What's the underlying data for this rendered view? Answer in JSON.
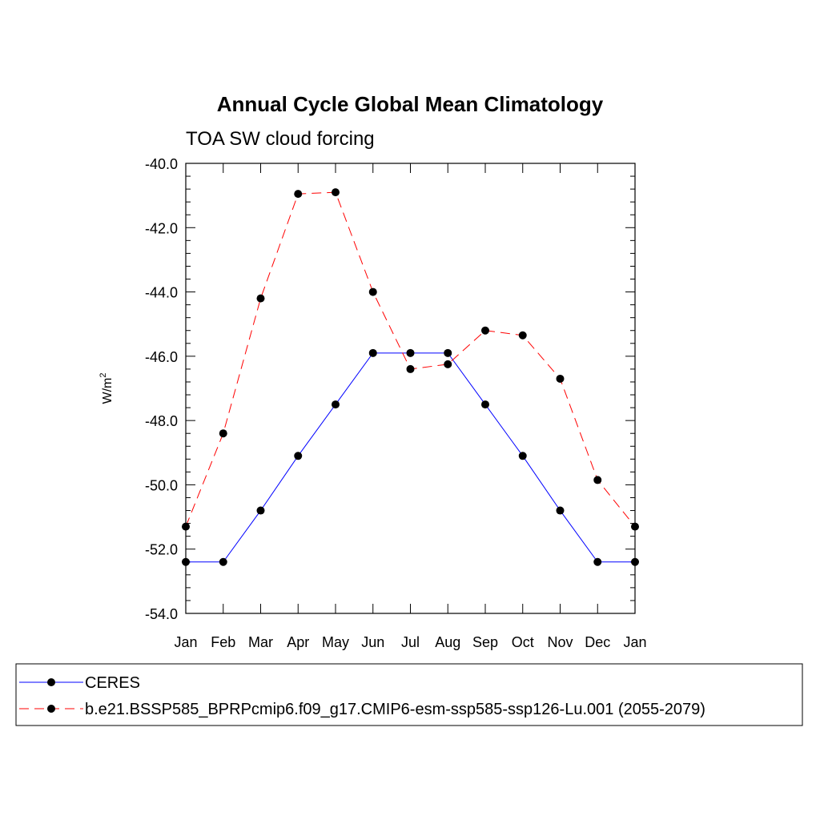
{
  "chart_data": {
    "type": "line",
    "title": "Annual Cycle Global Mean Climatology",
    "subtitle": "TOA SW cloud forcing",
    "ylabel": "W/m",
    "ylabel_superscript": "2",
    "categories": [
      "Jan",
      "Feb",
      "Mar",
      "Apr",
      "May",
      "Jun",
      "Jul",
      "Aug",
      "Sep",
      "Oct",
      "Nov",
      "Dec",
      "Jan"
    ],
    "ylim": [
      -54.0,
      -40.0
    ],
    "yticks": [
      -40.0,
      -42.0,
      -44.0,
      -46.0,
      -48.0,
      -50.0,
      -52.0,
      -54.0
    ],
    "ytick_labels": [
      "-40.0",
      "-42.0",
      "-44.0",
      "-46.0",
      "-48.0",
      "-50.0",
      "-52.0",
      "-54.0"
    ],
    "grid": false,
    "legend_placement": "bottom",
    "series": [
      {
        "name": "CERES",
        "color": "#0000ff",
        "line_style": "solid",
        "marker": "filled-circle",
        "values": [
          -52.4,
          -52.4,
          -50.8,
          -49.1,
          -47.5,
          -45.9,
          -45.9,
          -45.9,
          -47.5,
          -49.1,
          -50.8,
          -52.4,
          -52.4
        ]
      },
      {
        "name": "b.e21.BSSP585_BPRPcmip6.f09_g17.CMIP6-esm-ssp585-ssp126-Lu.001 (2055-2079)",
        "color": "#ff0000",
        "line_style": "dashed",
        "marker": "filled-circle",
        "values": [
          -51.3,
          -48.4,
          -44.2,
          -40.95,
          -40.9,
          -44.0,
          -46.4,
          -46.25,
          -45.2,
          -45.35,
          -46.7,
          -49.85,
          -51.3
        ]
      }
    ]
  }
}
